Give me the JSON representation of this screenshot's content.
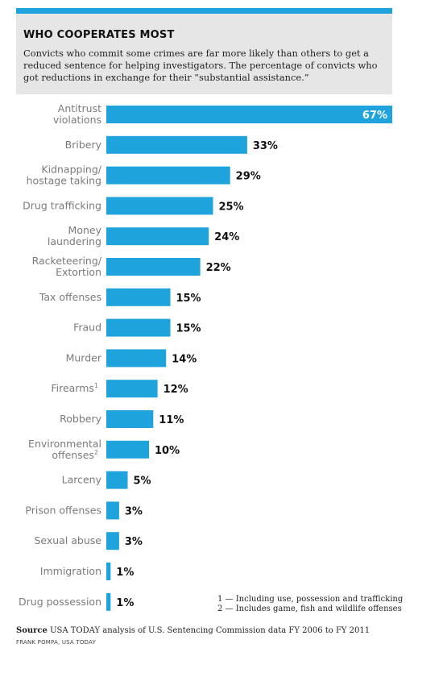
{
  "colors": {
    "accent": "#1ea3dd",
    "header_bg": "#e6e6e6",
    "label_text": "#7b7b7b"
  },
  "header": {
    "title": "WHO COOPERATES MOST",
    "subtitle": "Convicts who commit some crimes are far more likely than others to get a reduced sentence for helping investigators. The percentage of convicts who got reductions in exchange for their “substantial assistance.”"
  },
  "chart_data": {
    "type": "bar",
    "orientation": "horizontal",
    "title": "WHO COOPERATES MOST",
    "xlabel": "",
    "ylabel": "",
    "unit": "%",
    "xlim": [
      0,
      67
    ],
    "grid": false,
    "legend": "none",
    "categories": [
      [
        "Antitrust",
        "violations"
      ],
      [
        "Bribery"
      ],
      [
        "Kidnapping/",
        "hostage taking"
      ],
      [
        "Drug trafficking"
      ],
      [
        "Money",
        "laundering"
      ],
      [
        "Racketeering/",
        "Extortion"
      ],
      [
        "Tax offenses"
      ],
      [
        "Fraud"
      ],
      [
        "Murder"
      ],
      [
        "Firearms"
      ],
      [
        "Robbery"
      ],
      [
        "Environmental",
        "offenses"
      ],
      [
        "Larceny"
      ],
      [
        "Prison offenses"
      ],
      [
        "Sexual abuse"
      ],
      [
        "Immigration"
      ],
      [
        "Drug possession"
      ]
    ],
    "category_footnotes": [
      "",
      "",
      "",
      "",
      "",
      "",
      "",
      "",
      "",
      "1",
      "",
      "2",
      "",
      "",
      "",
      "",
      ""
    ],
    "values": [
      67,
      33,
      29,
      25,
      24,
      22,
      15,
      15,
      14,
      12,
      11,
      10,
      5,
      3,
      3,
      1,
      1
    ],
    "value_labels": [
      "67%",
      "33%",
      "29%",
      "25%",
      "24%",
      "22%",
      "15%",
      "15%",
      "14%",
      "12%",
      "11%",
      "10%",
      "5%",
      "3%",
      "3%",
      "1%",
      "1%"
    ]
  },
  "footnotes": [
    "1 — Including use, possession and trafficking",
    "2 — Includes game, fish and wildlife offenses"
  ],
  "source": {
    "label": "Source",
    "text": " USA TODAY analysis of U.S. Sentencing Commission data FY 2006 to FY 2011"
  },
  "credit": "FRANK POMPA, USA TODAY"
}
